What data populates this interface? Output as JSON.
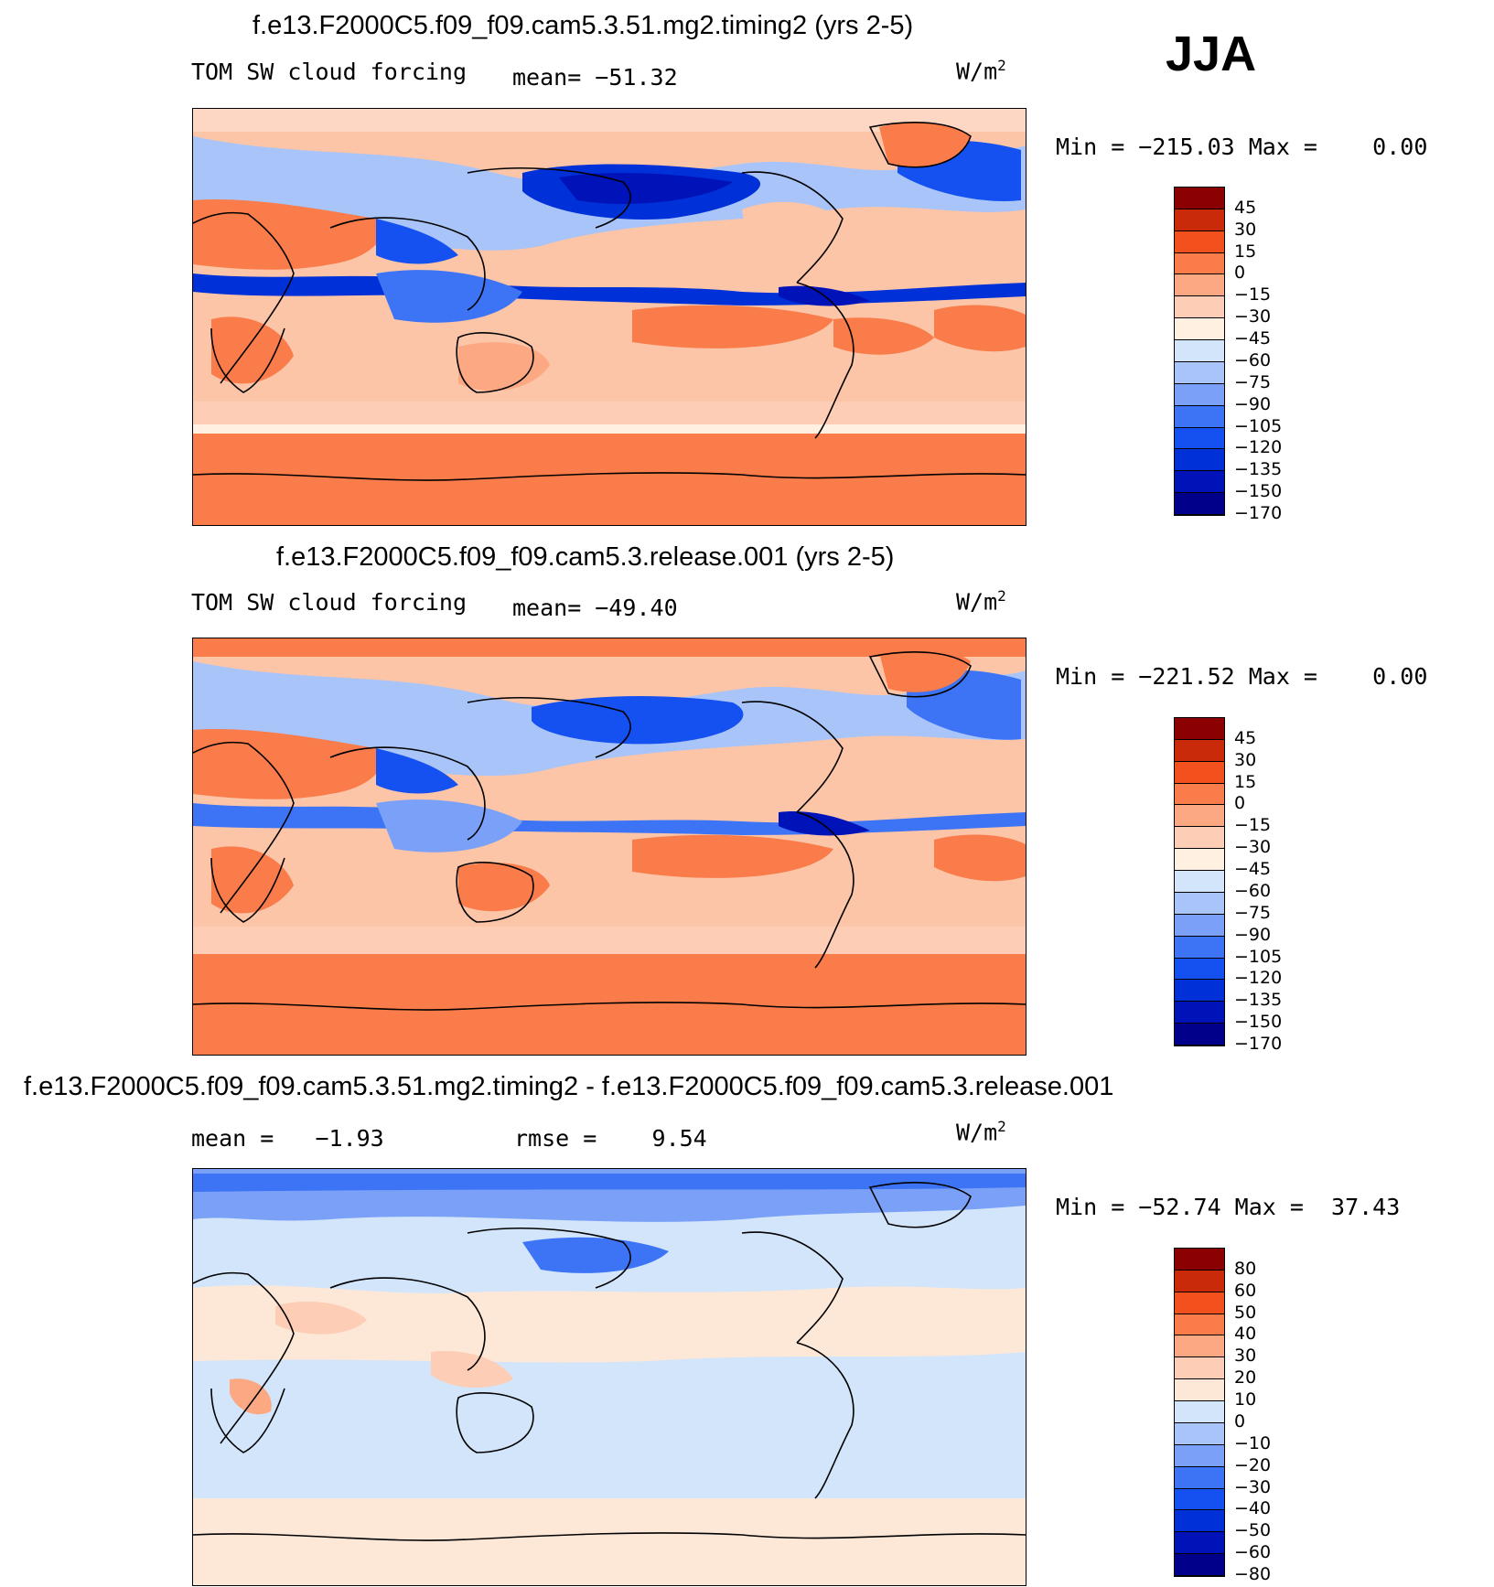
{
  "season": "JJA",
  "units_label": "W/m",
  "units_sup": "2",
  "colors": {
    "coast": "#000000",
    "scale_main": [
      "#00008b",
      "#0013b8",
      "#0030d8",
      "#1451f0",
      "#3d74f5",
      "#7aa0f7",
      "#a9c4f8",
      "#d3e5fb",
      "#fff0e1",
      "#fdcdb5",
      "#fba883",
      "#f97c4a",
      "#f2501c",
      "#c82a0a",
      "#8b0000"
    ],
    "scale_diff": [
      "#00008b",
      "#0013b8",
      "#0030d8",
      "#1451f0",
      "#3d74f5",
      "#7aa0f7",
      "#a9c4f8",
      "#d3e5fb",
      "#fde8d8",
      "#fdcdb5",
      "#fba883",
      "#f97c4a",
      "#f2501c",
      "#c82a0a",
      "#8b0000"
    ]
  },
  "panels": [
    {
      "title": "f.e13.F2000C5.f09_f09.cam5.3.51.mg2.timing2 (yrs 2-5)",
      "variable": "TOM SW cloud forcing",
      "mean_label": "mean= −51.32",
      "minmax": "Min = −215.03 Max =    0.00",
      "colorbar_ticks": [
        "45",
        "30",
        "15",
        "0",
        "−15",
        "−30",
        "−45",
        "−60",
        "−75",
        "−90",
        "−105",
        "−120",
        "−135",
        "−150",
        "−170"
      ]
    },
    {
      "title": "f.e13.F2000C5.f09_f09.cam5.3.release.001 (yrs 2-5)",
      "variable": "TOM SW cloud forcing",
      "mean_label": "mean= −49.40",
      "minmax": "Min = −221.52 Max =    0.00",
      "colorbar_ticks": [
        "45",
        "30",
        "15",
        "0",
        "−15",
        "−30",
        "−45",
        "−60",
        "−75",
        "−90",
        "−105",
        "−120",
        "−135",
        "−150",
        "−170"
      ]
    },
    {
      "title": "f.e13.F2000C5.f09_f09.cam5.3.51.mg2.timing2 - f.e13.F2000C5.f09_f09.cam5.3.release.001",
      "mean_label": "mean =   −1.93",
      "rmse_label": "rmse =    9.54",
      "minmax": "Min = −52.74 Max =  37.43",
      "colorbar_ticks": [
        "80",
        "60",
        "50",
        "40",
        "30",
        "20",
        "10",
        "0",
        "−10",
        "−20",
        "−30",
        "−40",
        "−50",
        "−60",
        "−80"
      ]
    }
  ]
}
